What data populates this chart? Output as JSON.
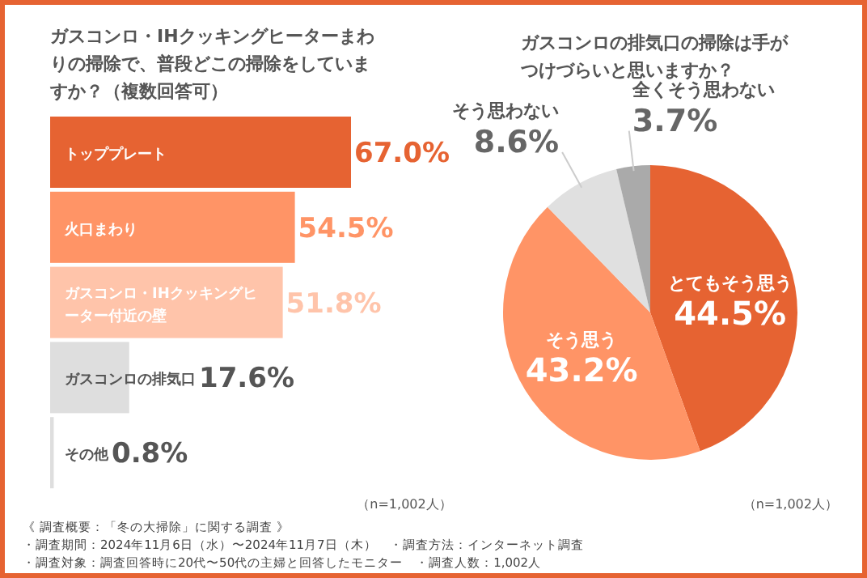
{
  "chart_data": [
    {
      "type": "bar",
      "orientation": "horizontal",
      "title": "ガスコンロ・IHクッキングヒーターまわりの掃除で、普段どこの掃除をしていますか？（複数回答可）",
      "categories": [
        "トッププレート",
        "火口まわり",
        "ガスコンロ・IHクッキングヒーター付近の壁",
        "ガスコンロの排気口",
        "その他"
      ],
      "values": [
        67.0,
        54.5,
        51.8,
        17.6,
        0.8
      ],
      "value_labels": [
        "67.0%",
        "54.5%",
        "51.8%",
        "17.6%",
        "0.8%"
      ],
      "colors": [
        "#e66332",
        "#ff9466",
        "#ffc4aa",
        "#dedede",
        "#dedede"
      ],
      "annotations": [
        "（n=1,002人）"
      ]
    },
    {
      "type": "pie",
      "title": "ガスコンロの排気口の掃除は手がつけづらいと思いますか？",
      "categories": [
        "とてもそう思う",
        "そう思う",
        "そう思わない",
        "全くそう思わない"
      ],
      "values": [
        44.5,
        43.2,
        8.6,
        3.7
      ],
      "value_labels": [
        "44.5%",
        "43.2%",
        "8.6%",
        "3.7%"
      ],
      "colors": [
        "#e66332",
        "#ff9466",
        "#e0e0e0",
        "#aaaaaa"
      ],
      "annotations": [
        "（n=1,002人）",
        "《 調査概要：「冬の大掃除」に関する調査 》",
        "・調査期間：2024年11月6日（水）〜2024年11月7日（木）　・調査方法：インターネット調査",
        "・調査対象：調査回答時に20代〜50代の主婦と回答したモニター　・調査人数：1,002人"
      ]
    }
  ]
}
